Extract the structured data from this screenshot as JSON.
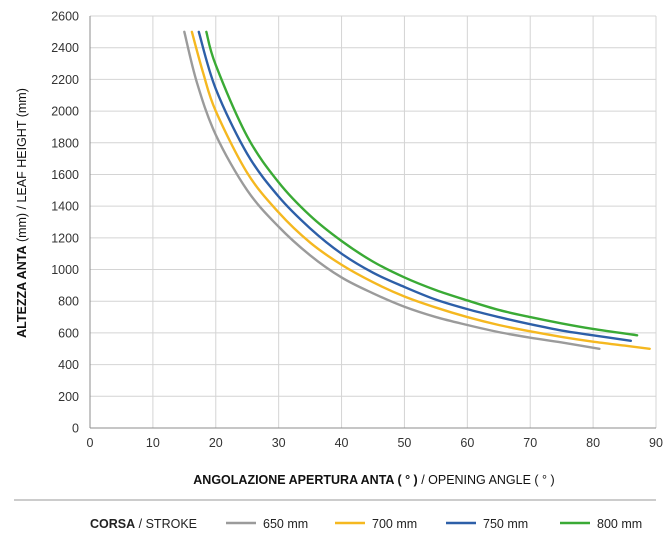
{
  "chart_data": {
    "type": "line",
    "title": "",
    "xlabel": {
      "bold": "ANGOLAZIONE APERTURA ANTA ( ° )",
      "normal": " / OPENING ANGLE ( ° )"
    },
    "ylabel": {
      "bold": "ALTEZZA ANTA",
      "normal": " (mm) / LEAF HEIGHT (mm)"
    },
    "xlim": [
      0,
      90
    ],
    "ylim": [
      0,
      2600
    ],
    "x_ticks": [
      0,
      10,
      20,
      30,
      40,
      50,
      60,
      70,
      80,
      90
    ],
    "y_ticks": [
      0,
      200,
      400,
      600,
      800,
      1000,
      1200,
      1400,
      1600,
      1800,
      2000,
      2200,
      2400,
      2600
    ],
    "grid": "both",
    "legend": {
      "title_bold": "CORSA",
      "title_normal": " / STROKE",
      "placement": "bottom"
    },
    "series": [
      {
        "name": "650 mm",
        "color": "#9b9b9b",
        "x": [
          15,
          17,
          20,
          25,
          30,
          35,
          40,
          45,
          50,
          55,
          60,
          65,
          70,
          75,
          81
        ],
        "y": [
          2500,
          2180,
          1850,
          1500,
          1270,
          1090,
          950,
          850,
          765,
          700,
          650,
          605,
          570,
          540,
          500
        ]
      },
      {
        "name": "700 mm",
        "color": "#f5b820",
        "x": [
          16.2,
          18,
          20,
          25,
          30,
          35,
          40,
          45,
          50,
          55,
          60,
          65,
          70,
          75,
          80,
          85,
          89
        ],
        "y": [
          2500,
          2240,
          2000,
          1610,
          1360,
          1170,
          1030,
          920,
          830,
          760,
          700,
          650,
          610,
          575,
          545,
          520,
          500
        ]
      },
      {
        "name": "750 mm",
        "color": "#2d5fa8",
        "x": [
          17.3,
          20,
          25,
          30,
          35,
          40,
          45,
          50,
          55,
          60,
          65,
          70,
          75,
          80,
          86
        ],
        "y": [
          2500,
          2140,
          1730,
          1460,
          1260,
          1100,
          980,
          890,
          810,
          750,
          700,
          655,
          615,
          585,
          550
        ]
      },
      {
        "name": "800 mm",
        "color": "#3aaa35",
        "x": [
          18.5,
          20,
          25,
          30,
          35,
          40,
          45,
          50,
          55,
          60,
          65,
          70,
          75,
          80,
          87
        ],
        "y": [
          2500,
          2290,
          1840,
          1550,
          1340,
          1180,
          1050,
          950,
          870,
          805,
          745,
          700,
          660,
          625,
          585
        ]
      }
    ]
  }
}
